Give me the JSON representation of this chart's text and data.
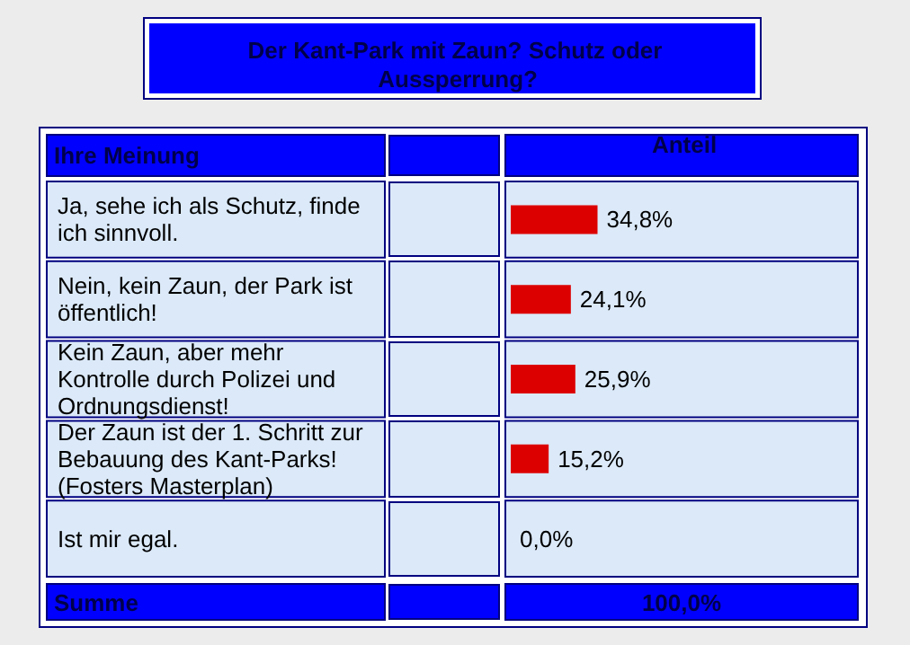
{
  "chart_data": {
    "type": "bar",
    "orientation": "horizontal",
    "title": "Der Kant-Park mit Zaun? Schutz oder Aussperrung?",
    "ylabel": "Ihre Meinung",
    "xlabel": "Anteil",
    "categories": [
      "Ja, sehe ich als Schutz, finde ich sinnvoll.",
      "Nein, kein Zaun, der Park ist öffentlich!",
      "Kein Zaun, aber mehr Kontrolle durch Polizei und Ordnungsdienst!",
      "Der Zaun ist der 1. Schritt zur Bebauung des Kant-Parks! (Fosters Masterplan)",
      "Ist mir egal."
    ],
    "values": [
      34.8,
      24.1,
      25.9,
      15.2,
      0.0
    ],
    "value_labels": [
      "34,8%",
      "24,1%",
      "25,9%",
      "15,2%",
      "0,0%"
    ],
    "color": "#dd0000",
    "annotations": [
      "Summe",
      "100,0%"
    ],
    "tick_labels": "y"
  }
}
